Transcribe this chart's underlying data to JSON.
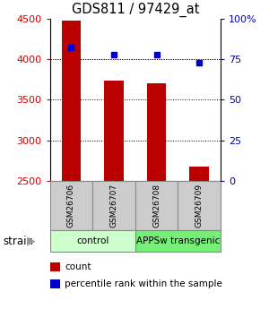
{
  "title": "GDS811 / 97429_at",
  "samples": [
    "GSM26706",
    "GSM26707",
    "GSM26708",
    "GSM26709"
  ],
  "counts": [
    4480,
    3740,
    3700,
    2680
  ],
  "percentiles": [
    82,
    78,
    78,
    73
  ],
  "ylim_left": [
    2500,
    4500
  ],
  "ylim_right": [
    0,
    100
  ],
  "yticks_left": [
    2500,
    3000,
    3500,
    4000,
    4500
  ],
  "yticks_right": [
    0,
    25,
    50,
    75,
    100
  ],
  "ytick_labels_right": [
    "0",
    "25",
    "50",
    "75",
    "100%"
  ],
  "bar_color": "#bb0000",
  "dot_color": "#0000cc",
  "bar_width": 0.45,
  "groups": [
    {
      "label": "control",
      "samples": [
        0,
        1
      ],
      "color": "#ccffcc"
    },
    {
      "label": "APPSw transgenic",
      "samples": [
        2,
        3
      ],
      "color": "#77ee77"
    }
  ],
  "strain_label": "strain",
  "legend_items": [
    {
      "label": "count",
      "color": "#bb0000"
    },
    {
      "label": "percentile rank within the sample",
      "color": "#0000cc"
    }
  ],
  "tick_color_left": "#cc0000",
  "tick_color_right": "#0000bb",
  "sample_box_color": "#cccccc",
  "sample_box_edge": "#888888"
}
